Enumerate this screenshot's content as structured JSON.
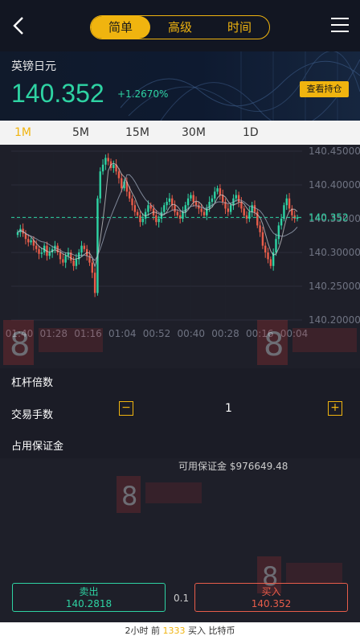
{
  "header": {
    "tabs": [
      {
        "label": "简单",
        "active": true
      },
      {
        "label": "高级",
        "active": false
      },
      {
        "label": "时间",
        "active": false
      }
    ]
  },
  "hero": {
    "pair": "英镑日元",
    "price": "140.352",
    "change": "+1.2670%",
    "hold_button": "查看持仓"
  },
  "timeframes": [
    {
      "label": "1M",
      "active": true
    },
    {
      "label": "5M",
      "active": false
    },
    {
      "label": "15M",
      "active": false
    },
    {
      "label": "30M",
      "active": false
    },
    {
      "label": "1D",
      "active": false
    }
  ],
  "chart_data": {
    "type": "candlestick",
    "y_ticks": [
      "140.45000",
      "140.40000",
      "140.35000",
      "140.30000",
      "140.25000",
      "140.20000"
    ],
    "ylim": [
      140.2,
      140.45
    ],
    "x_ticks": [
      "01:40",
      "01:28",
      "01:16",
      "01:04",
      "00:52",
      "00:40",
      "00:28",
      "00:16",
      "00:04"
    ],
    "current_price": 140.352,
    "current_price_label": "140.352",
    "colors": {
      "up": "#2ed3a3",
      "down": "#e85d4a",
      "ma": "#c8c8c8",
      "current": "#2ed3a3"
    },
    "closes": [
      140.33,
      140.335,
      140.328,
      140.32,
      140.315,
      140.318,
      140.31,
      140.305,
      140.298,
      140.3,
      140.31,
      140.295,
      140.3,
      140.305,
      140.31,
      140.3,
      140.29,
      140.285,
      140.295,
      140.3,
      140.288,
      140.28,
      140.29,
      140.3,
      140.31,
      140.305,
      140.295,
      140.285,
      140.27,
      140.24,
      140.38,
      140.42,
      140.43,
      140.44,
      140.435,
      140.425,
      140.43,
      140.42,
      140.41,
      140.395,
      140.405,
      140.39,
      140.38,
      140.37,
      140.36,
      140.355,
      140.345,
      140.35,
      140.36,
      140.37,
      140.365,
      140.355,
      140.345,
      140.35,
      140.36,
      140.37,
      140.375,
      140.38,
      140.37,
      140.36,
      140.355,
      140.35,
      140.36,
      140.37,
      140.38,
      140.385,
      140.375,
      140.37,
      140.365,
      140.36,
      140.355,
      140.365,
      140.375,
      140.38,
      140.39,
      140.395,
      140.385,
      140.375,
      140.365,
      140.36,
      140.37,
      140.38,
      140.385,
      140.375,
      140.365,
      140.355,
      140.35,
      140.36,
      140.37,
      140.36,
      140.34,
      140.33,
      140.31,
      140.3,
      140.29,
      140.28,
      140.3,
      140.32,
      140.34,
      140.35,
      140.37,
      140.38,
      140.365,
      140.355,
      140.35,
      140.352
    ]
  },
  "lower": {
    "leverage_label": "杠杆倍数",
    "lots_label": "交易手数",
    "lots_value": "1",
    "minus": "−",
    "plus": "+",
    "margin_label": "占用保证金",
    "available_margin": "可用保证金 $976649.48"
  },
  "trade": {
    "sell_label": "卖出",
    "sell_price": "140.2818",
    "spread": "0.1",
    "buy_label": "买入",
    "buy_price": "140.352"
  },
  "ticker": {
    "prefix": "2小时 前",
    "user": "1333",
    "suffix": "买入 比特币"
  }
}
